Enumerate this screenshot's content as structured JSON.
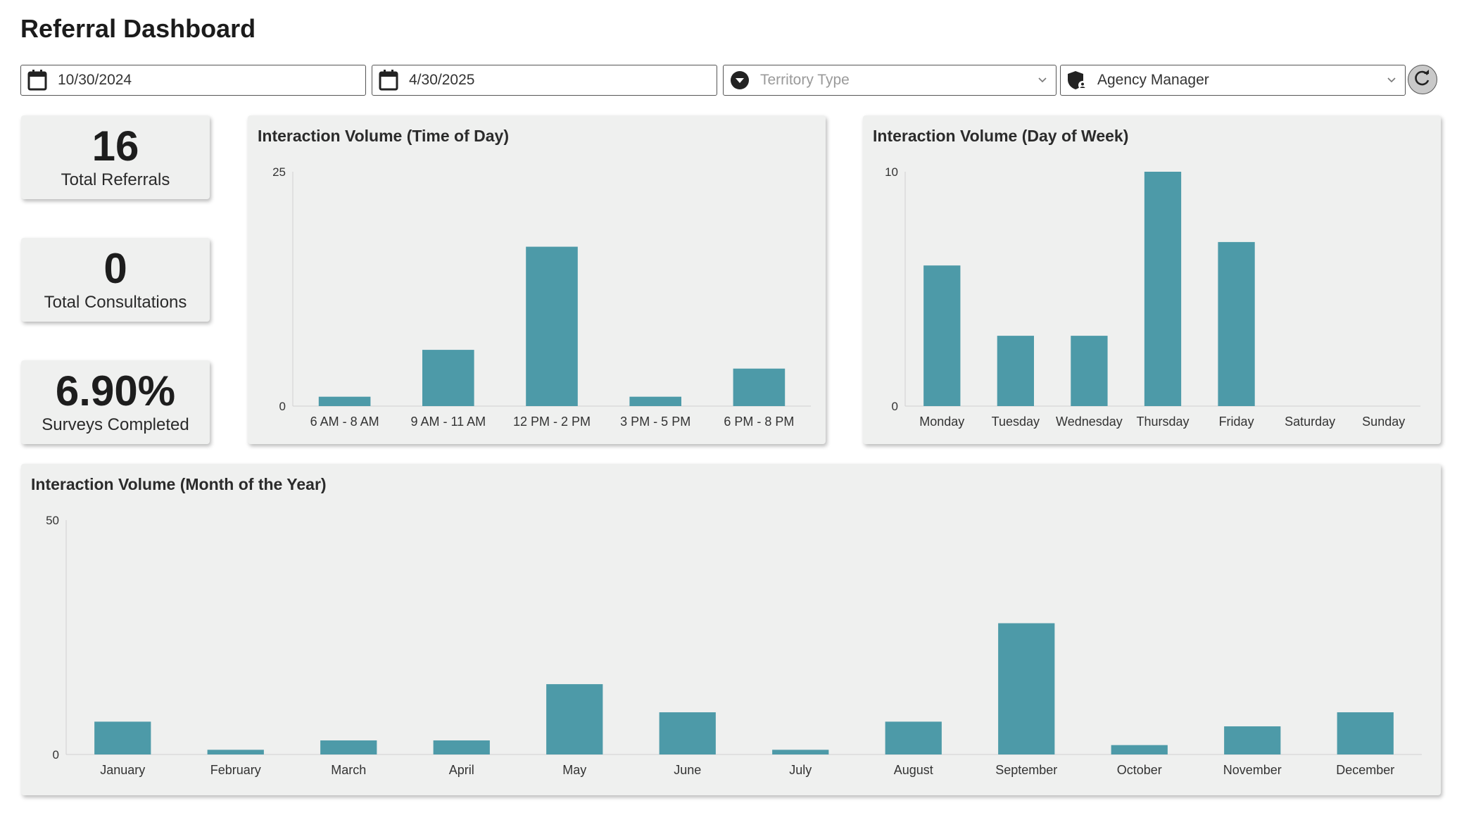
{
  "page": {
    "title": "Referral Dashboard"
  },
  "filters": {
    "start_date": {
      "value": "10/30/2024",
      "icon": "calendar-icon"
    },
    "end_date": {
      "value": "4/30/2025",
      "icon": "calendar-icon"
    },
    "territory": {
      "placeholder": "Territory Type",
      "icon": "chevron-circle-icon"
    },
    "agency_manager": {
      "value": "Agency Manager",
      "icon": "shield-user-icon"
    },
    "refresh": {
      "icon": "refresh-icon"
    }
  },
  "kpis": [
    {
      "value": "16",
      "label": "Total Referrals"
    },
    {
      "value": "0",
      "label": "Total Consultations"
    },
    {
      "value": "6.90%",
      "label": "Surveys Completed"
    }
  ],
  "colors": {
    "bar": "#4d9aa8",
    "axis": "#d0d0d0",
    "card": "#eff0ef"
  },
  "chart_data": [
    {
      "type": "bar",
      "title": "Interaction Volume (Time of Day)",
      "categories": [
        "6 AM - 8 AM",
        "9 AM - 11 AM",
        "12 PM - 2 PM",
        "3 PM - 5 PM",
        "6 PM - 8 PM"
      ],
      "values": [
        1,
        6,
        17,
        1,
        4
      ],
      "ylim": [
        0,
        25
      ],
      "yticks": [
        "0",
        "25"
      ]
    },
    {
      "type": "bar",
      "title": "Interaction Volume (Day of Week)",
      "categories": [
        "Monday",
        "Tuesday",
        "Wednesday",
        "Thursday",
        "Friday",
        "Saturday",
        "Sunday"
      ],
      "values": [
        6,
        3,
        3,
        10,
        7,
        0,
        0
      ],
      "ylim": [
        0,
        10
      ],
      "yticks": [
        "0",
        "10"
      ]
    },
    {
      "type": "bar",
      "title": "Interaction Volume (Month of the Year)",
      "categories": [
        "January",
        "February",
        "March",
        "April",
        "May",
        "June",
        "July",
        "August",
        "September",
        "October",
        "November",
        "December"
      ],
      "values": [
        7,
        1,
        3,
        3,
        15,
        9,
        1,
        7,
        28,
        2,
        6,
        9
      ],
      "ylim": [
        0,
        50
      ],
      "yticks": [
        "0",
        "50"
      ]
    }
  ]
}
